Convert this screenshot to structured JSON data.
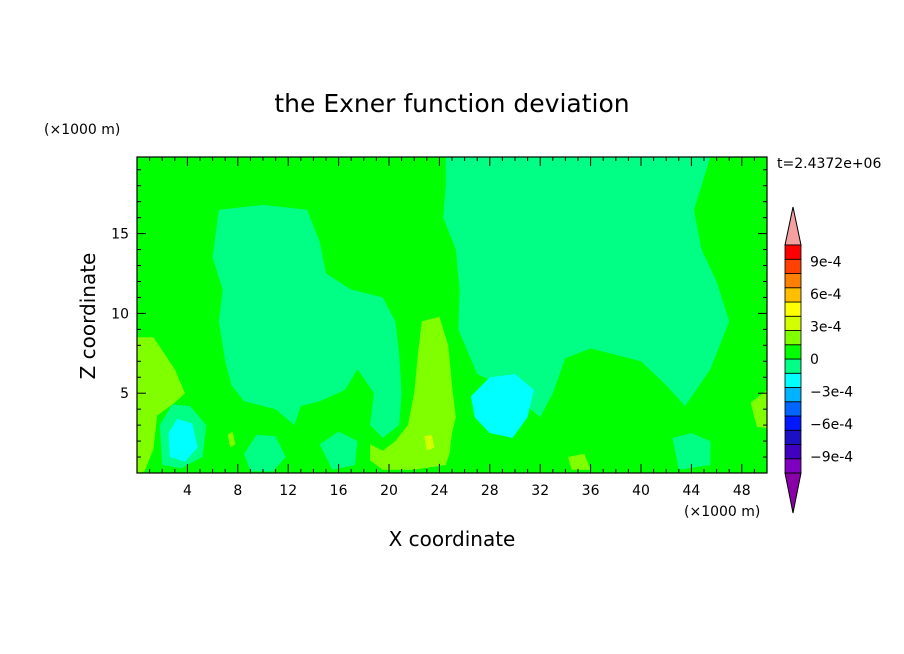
{
  "chart_data": {
    "type": "heatmap",
    "title": "the Exner function deviation",
    "xlabel": "X coordinate",
    "ylabel": "Z coordinate",
    "x_unit": "(×1000 m)",
    "y_unit": "(×1000 m)",
    "time_label": "t=2.4372e+06",
    "xlim": [
      0,
      50
    ],
    "ylim": [
      0,
      19.8
    ],
    "x_ticks": [
      4,
      8,
      12,
      16,
      20,
      24,
      28,
      32,
      36,
      40,
      44,
      48
    ],
    "x_tick_labels": [
      "4",
      "8",
      "12",
      "16",
      "20",
      "24",
      "28",
      "32",
      "36",
      "40",
      "44",
      "48"
    ],
    "y_ticks": [
      5,
      10,
      15
    ],
    "y_tick_labels": [
      "5",
      "10",
      "15"
    ],
    "colorbar": {
      "min": -0.00105,
      "max": 0.00105,
      "step": 0.00015,
      "tick_values": [
        0.0009,
        0.0006,
        0.0003,
        0,
        -0.0003,
        -0.0006,
        -0.0009
      ],
      "tick_labels": [
        "9e-4",
        "6e-4",
        "3e-4",
        "0",
        "−3e-4",
        "−6e-4",
        "−9e-4"
      ],
      "colors": [
        "#7f00bf",
        "#3f00bf",
        "#1d0fc2",
        "#0019ff",
        "#0066ff",
        "#00b2ff",
        "#00ffff",
        "#00ff84",
        "#00ff00",
        "#7fff00",
        "#d2ff00",
        "#ffff00",
        "#ffbf00",
        "#ff7f00",
        "#ff4000",
        "#ff0000"
      ],
      "over_color": "#f4a0a0",
      "under_color": "#8a00a8"
    },
    "fill_levels": {
      "background": "#00ff00",
      "neg_small": "#00ff84",
      "neg_mid": "#00ffff",
      "pos_small": "#7fff00",
      "pos_mid": "#d2ff00"
    },
    "regions": [
      {
        "level": "neg_small",
        "points": [
          [
            24.5,
            19.8
          ],
          [
            45.5,
            19.8
          ],
          [
            45,
            18.5
          ],
          [
            44.2,
            16.5
          ],
          [
            44.8,
            14
          ],
          [
            46,
            12
          ],
          [
            47,
            9.5
          ],
          [
            45.5,
            6.5
          ],
          [
            43.5,
            4.2
          ],
          [
            42,
            5.5
          ],
          [
            40,
            7
          ],
          [
            37.5,
            7.5
          ],
          [
            36,
            7.8
          ],
          [
            34,
            7.2
          ],
          [
            33,
            5
          ],
          [
            32,
            3.5
          ],
          [
            30.5,
            4.5
          ],
          [
            29,
            5.5
          ],
          [
            27,
            6.2
          ],
          [
            25.5,
            9
          ],
          [
            25.6,
            11.5
          ],
          [
            25.3,
            14
          ],
          [
            24.3,
            16
          ],
          [
            24.5,
            18
          ]
        ]
      },
      {
        "level": "neg_small",
        "points": [
          [
            6.5,
            16.5
          ],
          [
            10,
            16.8
          ],
          [
            13.5,
            16.5
          ],
          [
            14.5,
            14.5
          ],
          [
            15,
            12.5
          ],
          [
            17,
            11.5
          ],
          [
            19.5,
            11
          ],
          [
            20.5,
            9.5
          ],
          [
            20.8,
            7.5
          ],
          [
            21,
            5
          ],
          [
            20.8,
            3
          ],
          [
            19.5,
            2.2
          ],
          [
            18.5,
            3
          ],
          [
            18.8,
            5
          ],
          [
            17.5,
            6.5
          ],
          [
            16.5,
            5.2
          ],
          [
            14.5,
            4.5
          ],
          [
            13,
            4.2
          ],
          [
            12.5,
            3
          ],
          [
            11,
            4
          ],
          [
            8.5,
            4.5
          ],
          [
            7.5,
            5.5
          ],
          [
            7,
            7
          ],
          [
            6.5,
            9.5
          ],
          [
            6.8,
            11.5
          ],
          [
            6,
            13.5
          ]
        ]
      },
      {
        "level": "neg_mid",
        "points": [
          [
            26.5,
            4.8
          ],
          [
            28,
            6
          ],
          [
            30,
            6.2
          ],
          [
            31.5,
            5.2
          ],
          [
            31,
            3.5
          ],
          [
            29.8,
            2.2
          ],
          [
            28,
            2.5
          ],
          [
            26.8,
            3.5
          ]
        ]
      },
      {
        "level": "neg_small",
        "points": [
          [
            1.8,
            3
          ],
          [
            2.8,
            4.3
          ],
          [
            4.2,
            4.2
          ],
          [
            5.5,
            3
          ],
          [
            5.2,
            1
          ],
          [
            3.5,
            0.3
          ],
          [
            2,
            0.5
          ]
        ]
      },
      {
        "level": "neg_mid",
        "points": [
          [
            2.5,
            2.5
          ],
          [
            3.2,
            3.4
          ],
          [
            4.4,
            3.1
          ],
          [
            4.8,
            1.6
          ],
          [
            3.8,
            0.7
          ],
          [
            2.6,
            1
          ]
        ]
      },
      {
        "level": "neg_small",
        "points": [
          [
            8.5,
            1.2
          ],
          [
            9.5,
            2.4
          ],
          [
            11,
            2.3
          ],
          [
            11.8,
            1
          ],
          [
            10.8,
            0.1
          ],
          [
            9,
            0.1
          ]
        ]
      },
      {
        "level": "neg_small",
        "points": [
          [
            14.5,
            1.8
          ],
          [
            16,
            2.6
          ],
          [
            17.5,
            2
          ],
          [
            17.3,
            0.5
          ],
          [
            15.5,
            0.2
          ]
        ]
      },
      {
        "level": "neg_small",
        "points": [
          [
            42.5,
            2.2
          ],
          [
            44,
            2.5
          ],
          [
            45.5,
            2
          ],
          [
            45.5,
            0.5
          ],
          [
            43,
            0.2
          ]
        ]
      },
      {
        "level": "pos_small",
        "points": [
          [
            0,
            8.5
          ],
          [
            1.3,
            8.5
          ],
          [
            3,
            6.5
          ],
          [
            3.8,
            5
          ],
          [
            3,
            4.4
          ],
          [
            1.6,
            3.6
          ],
          [
            1.3,
            1.5
          ],
          [
            0.6,
            0.1
          ],
          [
            0,
            0
          ]
        ]
      },
      {
        "level": "pos_small",
        "points": [
          [
            22.6,
            9.5
          ],
          [
            24,
            9.8
          ],
          [
            24.7,
            8
          ],
          [
            25,
            5.5
          ],
          [
            25.3,
            3.5
          ],
          [
            25,
            2.5
          ],
          [
            24.8,
            1.2
          ],
          [
            24.5,
            0.5
          ],
          [
            22,
            0.2
          ],
          [
            19.5,
            0.2
          ],
          [
            18.5,
            0.8
          ],
          [
            18.5,
            1.8
          ],
          [
            19.5,
            1.4
          ],
          [
            20.5,
            2
          ],
          [
            21.5,
            3
          ],
          [
            22,
            5
          ],
          [
            22.3,
            7.5
          ]
        ]
      },
      {
        "level": "pos_mid",
        "points": [
          [
            22.8,
            2.3
          ],
          [
            23.4,
            2.4
          ],
          [
            23.6,
            1.6
          ],
          [
            23,
            1.4
          ]
        ]
      },
      {
        "level": "pos_small",
        "points": [
          [
            48.7,
            4.4
          ],
          [
            50,
            5.2
          ],
          [
            50,
            2.8
          ],
          [
            49.2,
            2.9
          ]
        ]
      },
      {
        "level": "pos_small",
        "points": [
          [
            34.2,
            1
          ],
          [
            35.5,
            1.2
          ],
          [
            36,
            0.2
          ],
          [
            34.5,
            0.2
          ]
        ]
      },
      {
        "level": "pos_small",
        "points": [
          [
            7.2,
            2.4
          ],
          [
            7.6,
            2.6
          ],
          [
            7.8,
            1.8
          ],
          [
            7.4,
            1.6
          ]
        ]
      }
    ]
  }
}
